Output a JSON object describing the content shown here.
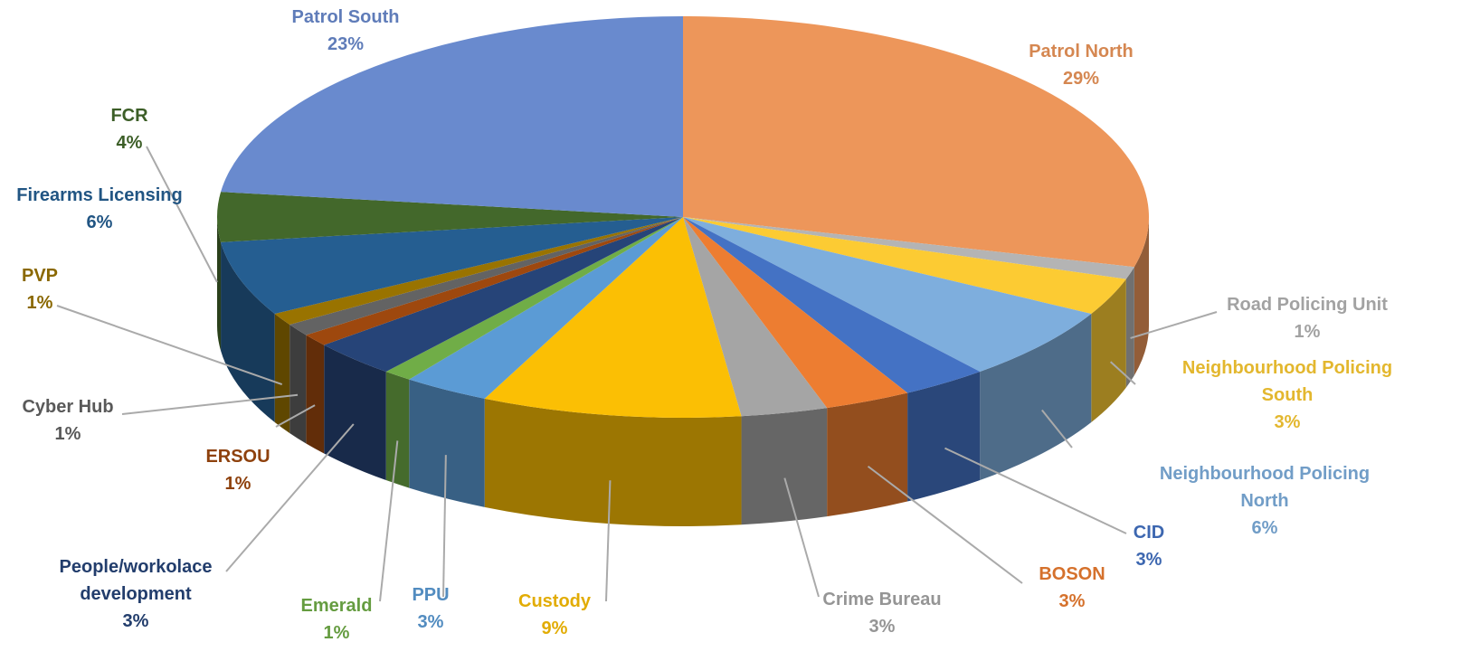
{
  "chart_data": {
    "type": "pie",
    "categories": [
      "Patrol North",
      "Road Policing Unit",
      "Neighbourhood Policing South",
      "Neighbourhood Policing North",
      "CID",
      "BOSON",
      "Crime Bureau",
      "Custody",
      "PPU",
      "Emerald",
      "People/workolace development",
      "ERSOU",
      "Cyber Hub",
      "PVP",
      "Firearms Licensing",
      "FCR",
      "Patrol South"
    ],
    "values": [
      29,
      1,
      3,
      6,
      3,
      3,
      3,
      9,
      3,
      1,
      3,
      1,
      1,
      1,
      6,
      4,
      23
    ],
    "value_labels": [
      "29%",
      "1%",
      "3%",
      "6%",
      "3%",
      "3%",
      "3%",
      "9%",
      "3%",
      "1%",
      "3%",
      "1%",
      "1%",
      "1%",
      "6%",
      "4%",
      "23%"
    ],
    "colors": [
      "#ed965a",
      "#b4b4b4",
      "#fccb33",
      "#7eaedd",
      "#4472c4",
      "#ed7d31",
      "#a5a5a5",
      "#fbbf04",
      "#5b9bd5",
      "#70ad47",
      "#264478",
      "#9e480e",
      "#636363",
      "#997300",
      "#255e91",
      "#43682b",
      "#698ace"
    ]
  }
}
